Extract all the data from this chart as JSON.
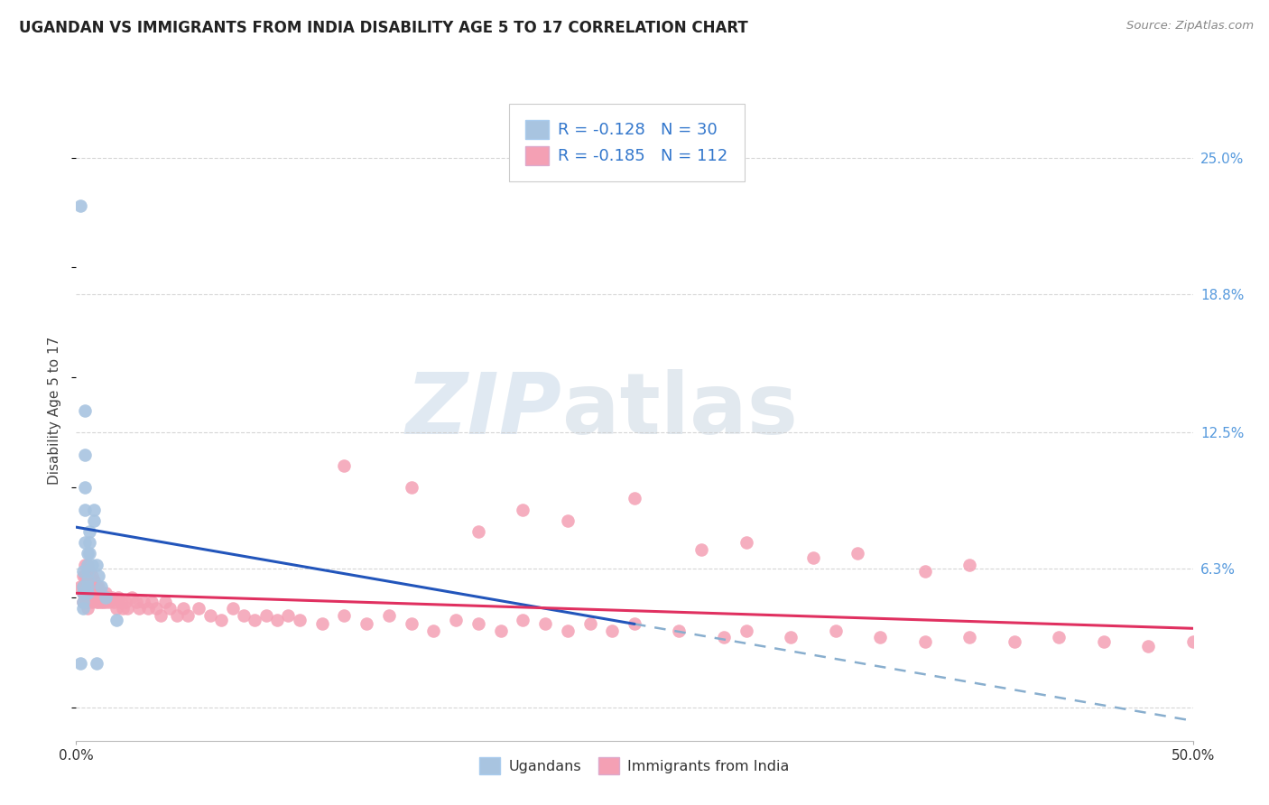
{
  "title": "UGANDAN VS IMMIGRANTS FROM INDIA DISABILITY AGE 5 TO 17 CORRELATION CHART",
  "source": "Source: ZipAtlas.com",
  "ylabel_label": "Disability Age 5 to 17",
  "xmin": 0.0,
  "xmax": 0.5,
  "ymin": -0.015,
  "ymax": 0.285,
  "ugandan_R": -0.128,
  "ugandan_N": 30,
  "india_R": -0.185,
  "india_N": 112,
  "ugandan_color": "#a8c4e0",
  "india_color": "#f4a0b4",
  "trendline_ugandan_color": "#2255bb",
  "trendline_india_color": "#e03060",
  "trendline_dashed_color": "#88aece",
  "background_color": "#ffffff",
  "grid_color": "#cccccc",
  "watermark_zip": "ZIP",
  "watermark_atlas": "atlas",
  "right_ytick_vals": [
    0.063,
    0.125,
    0.188,
    0.25
  ],
  "right_ytick_labels": [
    "6.3%",
    "12.5%",
    "18.8%",
    "25.0%"
  ],
  "ugandan_x": [
    0.002,
    0.002,
    0.003,
    0.003,
    0.003,
    0.003,
    0.003,
    0.004,
    0.004,
    0.004,
    0.004,
    0.004,
    0.005,
    0.005,
    0.005,
    0.005,
    0.005,
    0.005,
    0.006,
    0.006,
    0.006,
    0.007,
    0.008,
    0.008,
    0.009,
    0.01,
    0.011,
    0.013,
    0.018,
    0.009
  ],
  "ugandan_y": [
    0.228,
    0.02,
    0.062,
    0.055,
    0.052,
    0.048,
    0.045,
    0.135,
    0.115,
    0.1,
    0.09,
    0.075,
    0.07,
    0.065,
    0.062,
    0.058,
    0.055,
    0.052,
    0.08,
    0.075,
    0.07,
    0.065,
    0.09,
    0.085,
    0.065,
    0.06,
    0.055,
    0.05,
    0.04,
    0.02
  ],
  "india_x": [
    0.002,
    0.003,
    0.003,
    0.003,
    0.003,
    0.004,
    0.004,
    0.004,
    0.004,
    0.005,
    0.005,
    0.005,
    0.005,
    0.005,
    0.005,
    0.005,
    0.006,
    0.006,
    0.006,
    0.006,
    0.007,
    0.007,
    0.007,
    0.007,
    0.008,
    0.008,
    0.008,
    0.009,
    0.009,
    0.009,
    0.01,
    0.01,
    0.01,
    0.011,
    0.011,
    0.012,
    0.012,
    0.013,
    0.013,
    0.014,
    0.015,
    0.016,
    0.017,
    0.018,
    0.019,
    0.02,
    0.021,
    0.022,
    0.023,
    0.025,
    0.027,
    0.028,
    0.03,
    0.032,
    0.034,
    0.036,
    0.038,
    0.04,
    0.042,
    0.045,
    0.048,
    0.05,
    0.055,
    0.06,
    0.065,
    0.07,
    0.075,
    0.08,
    0.085,
    0.09,
    0.095,
    0.1,
    0.11,
    0.12,
    0.13,
    0.14,
    0.15,
    0.16,
    0.17,
    0.18,
    0.19,
    0.2,
    0.21,
    0.22,
    0.23,
    0.24,
    0.25,
    0.27,
    0.29,
    0.3,
    0.32,
    0.34,
    0.36,
    0.38,
    0.4,
    0.42,
    0.44,
    0.46,
    0.48,
    0.5,
    0.15,
    0.2,
    0.25,
    0.3,
    0.35,
    0.4,
    0.12,
    0.18,
    0.22,
    0.28,
    0.33,
    0.38
  ],
  "india_y": [
    0.055,
    0.06,
    0.055,
    0.052,
    0.048,
    0.065,
    0.06,
    0.055,
    0.05,
    0.065,
    0.06,
    0.058,
    0.055,
    0.052,
    0.048,
    0.045,
    0.062,
    0.058,
    0.055,
    0.052,
    0.06,
    0.055,
    0.052,
    0.048,
    0.058,
    0.055,
    0.052,
    0.055,
    0.052,
    0.048,
    0.055,
    0.052,
    0.048,
    0.052,
    0.048,
    0.05,
    0.048,
    0.052,
    0.048,
    0.05,
    0.048,
    0.05,
    0.048,
    0.045,
    0.05,
    0.048,
    0.045,
    0.048,
    0.045,
    0.05,
    0.048,
    0.045,
    0.048,
    0.045,
    0.048,
    0.045,
    0.042,
    0.048,
    0.045,
    0.042,
    0.045,
    0.042,
    0.045,
    0.042,
    0.04,
    0.045,
    0.042,
    0.04,
    0.042,
    0.04,
    0.042,
    0.04,
    0.038,
    0.042,
    0.038,
    0.042,
    0.038,
    0.035,
    0.04,
    0.038,
    0.035,
    0.04,
    0.038,
    0.035,
    0.038,
    0.035,
    0.038,
    0.035,
    0.032,
    0.035,
    0.032,
    0.035,
    0.032,
    0.03,
    0.032,
    0.03,
    0.032,
    0.03,
    0.028,
    0.03,
    0.1,
    0.09,
    0.095,
    0.075,
    0.07,
    0.065,
    0.11,
    0.08,
    0.085,
    0.072,
    0.068,
    0.062
  ],
  "trendline_ugandan_x0": 0.0,
  "trendline_ugandan_y0": 0.082,
  "trendline_ugandan_x1": 0.25,
  "trendline_ugandan_y1": 0.038,
  "trendline_dashed_x0": 0.25,
  "trendline_dashed_y0": 0.038,
  "trendline_dashed_x1": 0.5,
  "trendline_dashed_y1": -0.006,
  "trendline_india_x0": 0.0,
  "trendline_india_y0": 0.052,
  "trendline_india_x1": 0.5,
  "trendline_india_y1": 0.036
}
